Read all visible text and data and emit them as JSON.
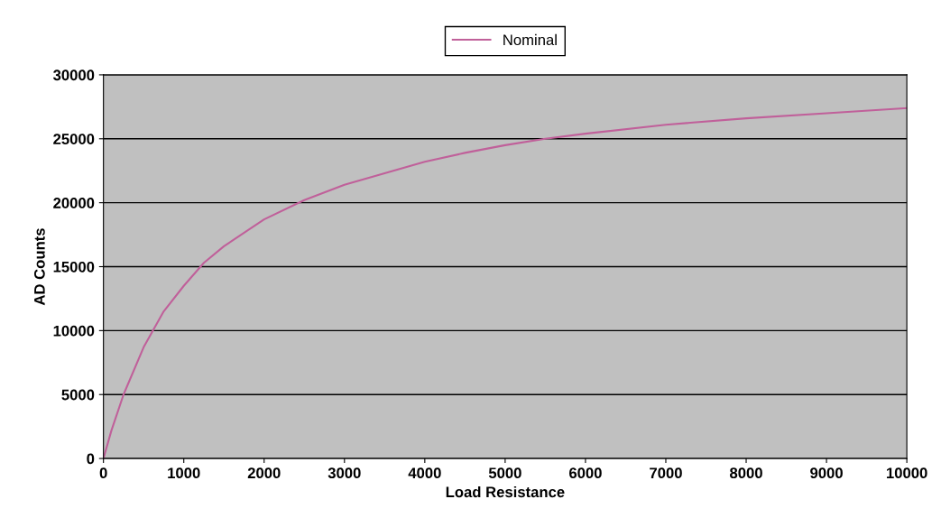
{
  "chart_data": {
    "type": "line",
    "xlabel": "Load Resistance",
    "ylabel": "AD Counts",
    "x": [
      0,
      100,
      250,
      500,
      750,
      1000,
      1250,
      1500,
      2000,
      2500,
      3000,
      3500,
      4000,
      4500,
      5000,
      5500,
      6000,
      7000,
      8000,
      9000,
      10000
    ],
    "series": [
      {
        "name": "Nominal",
        "color": "#c0609a",
        "values": [
          0,
          2200,
          5000,
          8700,
          11500,
          13500,
          15300,
          16600,
          18700,
          20200,
          21400,
          22300,
          23200,
          23900,
          24500,
          25000,
          25400,
          26100,
          26600,
          27000,
          27400
        ]
      }
    ],
    "xlim": [
      0,
      10000
    ],
    "xticks": [
      0,
      1000,
      2000,
      3000,
      4000,
      5000,
      6000,
      7000,
      8000,
      9000,
      10000
    ],
    "ylim": [
      0,
      30000
    ],
    "yticks": [
      0,
      5000,
      10000,
      15000,
      20000,
      25000,
      30000
    ],
    "grid": "y",
    "legend": "top",
    "marker": "none",
    "line_style": "solid"
  }
}
